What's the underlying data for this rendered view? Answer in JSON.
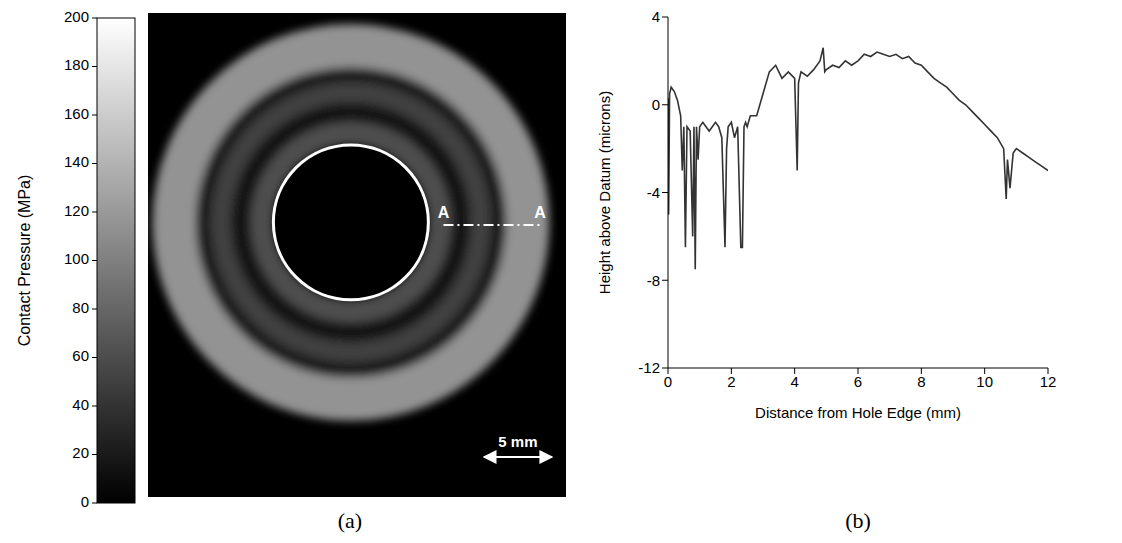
{
  "chart_data": [
    {
      "type": "heatmap",
      "panel": "(a)",
      "xlim": [
        -14.9,
        15.8
      ],
      "ylim": [
        -20.2,
        15.4
      ],
      "tick_labels": false,
      "colorbar": {
        "label": "Contact Pressure (MPa)",
        "range": [
          0,
          200
        ],
        "ticks": [
          0,
          20,
          40,
          60,
          80,
          100,
          120,
          140,
          160,
          180,
          200
        ]
      },
      "hole_radius_mm": 5.7,
      "rings": [
        {
          "inner_radius_mm": 5.7,
          "outer_radius_mm": 7.4,
          "pressure": 60
        },
        {
          "inner_radius_mm": 7.4,
          "outer_radius_mm": 8.8,
          "pressure": 15
        },
        {
          "inner_radius_mm": 8.8,
          "outer_radius_mm": 10.3,
          "pressure": 50
        },
        {
          "inner_radius_mm": 10.3,
          "outer_radius_mm": 11.4,
          "pressure": 20
        },
        {
          "inner_radius_mm": 11.4,
          "outer_radius_mm": 14.6,
          "pressure": 115
        }
      ],
      "section": {
        "label": "A",
        "from_mm": 6.8,
        "to_mm": 13.9,
        "y_mm": -0.2
      },
      "scale_bar": {
        "label": "5 mm",
        "length_mm": 5
      }
    },
    {
      "type": "line",
      "panel": "(b)",
      "xlabel": "Distance from Hole Edge (mm)",
      "ylabel": "Height above Datum (microns)",
      "xlim": [
        0,
        12
      ],
      "xticks": [
        0,
        2,
        4,
        6,
        8,
        10,
        12
      ],
      "ylim": [
        -12,
        4
      ],
      "yticks": [
        -12,
        -8,
        -4,
        0,
        4
      ],
      "grid": false,
      "color": "#333333",
      "x": [
        0,
        0.02,
        0.05,
        0.1,
        0.2,
        0.3,
        0.4,
        0.45,
        0.5,
        0.55,
        0.6,
        0.7,
        0.78,
        0.82,
        0.86,
        0.9,
        0.95,
        1.0,
        1.1,
        1.2,
        1.3,
        1.4,
        1.5,
        1.6,
        1.7,
        1.8,
        1.85,
        1.9,
        2.0,
        2.1,
        2.2,
        2.3,
        2.35,
        2.4,
        2.45,
        2.5,
        2.6,
        2.8,
        3.0,
        3.2,
        3.4,
        3.5,
        3.6,
        3.8,
        4.0,
        4.08,
        4.12,
        4.2,
        4.4,
        4.6,
        4.8,
        4.9,
        4.95,
        5.0,
        5.2,
        5.4,
        5.6,
        5.8,
        6.0,
        6.2,
        6.4,
        6.6,
        6.8,
        7.0,
        7.2,
        7.4,
        7.6,
        7.8,
        8.0,
        8.2,
        8.4,
        8.6,
        8.8,
        9.0,
        9.2,
        9.4,
        9.6,
        9.8,
        10.0,
        10.2,
        10.4,
        10.6,
        10.68,
        10.72,
        10.8,
        10.9,
        11.0,
        11.2,
        11.4,
        11.6,
        11.8,
        12.0
      ],
      "values": [
        0.3,
        -5,
        0.5,
        0.8,
        0.6,
        0.2,
        -0.5,
        -3,
        -1,
        -6.5,
        -1,
        -1.2,
        -6,
        -1,
        -7.5,
        -1,
        -2.5,
        -1,
        -0.8,
        -1,
        -1.2,
        -1,
        -0.8,
        -1,
        -1.5,
        -6.5,
        -2,
        -1,
        -0.8,
        -1.5,
        -1,
        -6.5,
        -6.5,
        -1,
        -0.8,
        -1,
        -0.5,
        -0.5,
        0.5,
        1.5,
        1.8,
        1.5,
        1.2,
        1.5,
        1.2,
        -3,
        1,
        1.5,
        1.3,
        1.6,
        2,
        2.6,
        1.5,
        1.6,
        1.8,
        1.7,
        2,
        1.8,
        2,
        2.3,
        2.2,
        2.4,
        2.3,
        2.2,
        2.3,
        2.1,
        2.2,
        1.9,
        1.8,
        1.5,
        1.2,
        1,
        0.8,
        0.5,
        0.2,
        0,
        -0.3,
        -0.6,
        -0.9,
        -1.2,
        -1.5,
        -2,
        -4.3,
        -2.5,
        -3.8,
        -2.2,
        -2,
        -2.2,
        -2.4,
        -2.6,
        -2.8,
        -3
      ]
    }
  ]
}
